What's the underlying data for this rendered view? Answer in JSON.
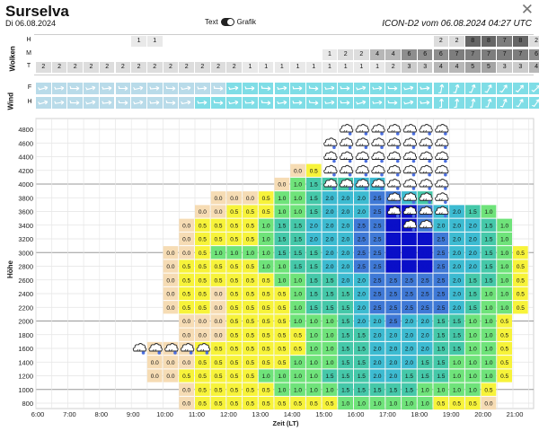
{
  "header": {
    "title": "Surselva",
    "date": "Di 06.08.2024",
    "toggle_text": "Text",
    "toggle_graph": "Grafik",
    "model_info": "ICON-D2 vom 06.08.2024 04:27 UTC",
    "close_glyph": "✕"
  },
  "clouds": {
    "label": "Wolken",
    "rows": [
      "H",
      "M",
      "T"
    ],
    "values": {
      "H": {
        "6": "1",
        "7": "1",
        "25": "2",
        "26": "2",
        "27": "8",
        "28": "8",
        "29": "7",
        "30": "8",
        "31": "2"
      },
      "M": {
        "18": "1",
        "19": "2",
        "20": "2",
        "21": "4",
        "22": "4",
        "23": "6",
        "24": "6",
        "25": "6",
        "26": "7",
        "27": "7",
        "28": "7",
        "29": "7",
        "30": "7",
        "31": "6"
      },
      "T": {
        "0": "2",
        "1": "2",
        "2": "2",
        "3": "2",
        "4": "2",
        "5": "2",
        "6": "2",
        "7": "2",
        "8": "2",
        "9": "2",
        "10": "2",
        "11": "2",
        "12": "2",
        "13": "1",
        "14": "1",
        "15": "1",
        "16": "1",
        "17": "1",
        "18": "1",
        "19": "1",
        "20": "1",
        "21": "1",
        "22": "2",
        "23": "3",
        "24": "3",
        "25": "4",
        "26": "4",
        "27": "5",
        "28": "5",
        "29": "3",
        "30": "3",
        "31": "4"
      }
    },
    "gray_levels": {
      "1": "#e9e9e9",
      "2": "#dddddd",
      "3": "#cccccc",
      "4": "#b7b7b7",
      "5": "#a5a5a5",
      "6": "#8e8e8e",
      "7": "#7d7d7d",
      "8": "#666666"
    }
  },
  "wind": {
    "label": "Wind",
    "rows": [
      "F",
      "H"
    ],
    "colors": {
      "light": "#b9dbe9",
      "cyan": "#7fdde6"
    }
  },
  "chart_data": {
    "type": "heatmap",
    "xlabel": "Zeit (LT)",
    "ylabel": "Höhe",
    "x_ticks": [
      "6:00",
      "7:00",
      "8:00",
      "9:00",
      "10:00",
      "11:00",
      "12:00",
      "13:00",
      "14:00",
      "15:00",
      "16:00",
      "17:00",
      "18:00",
      "19:00",
      "20:00",
      "21:00"
    ],
    "y_ticks": [
      "4800",
      "4600",
      "4400",
      "4200",
      "4000",
      "3800",
      "3600",
      "3400",
      "3200",
      "3000",
      "2800",
      "2600",
      "2400",
      "2200",
      "2000",
      "1800",
      "1600",
      "1400",
      "1200",
      "1000",
      "800"
    ],
    "y_range": [
      800,
      4800
    ],
    "x_range": [
      "6:00",
      "21:30"
    ],
    "thermal_values": {
      "2200": {
        "8": "0.0",
        "9": "0.5",
        "10": "0.5",
        "11": "0.0",
        "12": "0.5",
        "13": "0.5",
        "14": "0.5",
        "15": "0.5",
        "16": "1.0",
        "17": "1.5",
        "18": "1.5",
        "19": "1.5",
        "20": "2.0",
        "21": "2.5",
        "22": "2.5",
        "23": "2.5",
        "24": "2.5",
        "25": "2.5",
        "26": "2.0",
        "27": "1.5",
        "28": "1.0",
        "29": "1.0",
        "30": "0.5"
      },
      "2400": {
        "8": "0.0",
        "9": "0.5",
        "10": "0.5",
        "11": "0.0",
        "12": "0.5",
        "13": "0.5",
        "14": "0.5",
        "15": "0.5",
        "16": "1.0",
        "17": "1.5",
        "18": "1.5",
        "19": "1.5",
        "20": "2.0",
        "21": "2.5",
        "22": "2.5",
        "23": "2.5",
        "24": "2.5",
        "25": "2.5",
        "26": "2.0",
        "27": "1.5",
        "28": "1.0",
        "29": "1.0",
        "30": "0.5"
      },
      "2600": {
        "8": "0.0",
        "9": "0.5",
        "10": "0.5",
        "11": "0.5",
        "12": "0.5",
        "13": "0.5",
        "14": "0.5",
        "15": "1.0",
        "16": "1.0",
        "17": "1.5",
        "18": "1.5",
        "19": "2.0",
        "20": "2.0",
        "21": "2.5",
        "22": "2.5",
        "23": "2.5",
        "24": "2.5",
        "25": "2.5",
        "26": "2.0",
        "27": "1.5",
        "28": "1.5",
        "29": "1.0",
        "30": "0.5"
      },
      "2800": {
        "8": "0.0",
        "9": "0.5",
        "10": "0.5",
        "11": "0.5",
        "12": "0.5",
        "13": "0.5",
        "14": "1.0",
        "15": "1.0",
        "16": "1.5",
        "17": "1.5",
        "18": "2.0",
        "19": "2.0",
        "20": "2.5",
        "21": "2.5",
        "22": "3.0",
        "23": "3.0",
        "24": "3.0",
        "25": "2.5",
        "26": "2.0",
        "27": "2.0",
        "28": "1.5",
        "29": "1.0",
        "30": "0.5"
      },
      "3000": {
        "8": "0.0",
        "9": "0.0",
        "10": "0.5",
        "11": "1.0",
        "12": "1.0",
        "13": "1.0",
        "14": "1.0",
        "15": "1.5",
        "16": "1.5",
        "17": "1.5",
        "18": "2.0",
        "19": "2.0",
        "20": "2.5",
        "21": "2.5",
        "22": "3.0",
        "23": "3.0",
        "24": "3.0",
        "25": "2.5",
        "26": "2.0",
        "27": "2.0",
        "28": "1.5",
        "29": "1.0",
        "30": "0.5"
      },
      "3200": {
        "9": "0.0",
        "10": "0.5",
        "11": "0.5",
        "12": "0.5",
        "13": "0.5",
        "14": "1.0",
        "15": "1.5",
        "16": "1.5",
        "17": "2.0",
        "18": "2.0",
        "19": "2.0",
        "20": "2.5",
        "21": "2.5",
        "22": "3.0",
        "23": "3.0",
        "24": "3.0",
        "25": "2.5",
        "26": "2.0",
        "27": "2.0",
        "28": "1.5",
        "29": "1.0"
      },
      "3400": {
        "9": "0.0",
        "10": "0.5",
        "11": "0.5",
        "12": "0.5",
        "13": "0.5",
        "14": "1.0",
        "15": "1.5",
        "16": "1.5",
        "17": "2.0",
        "18": "2.0",
        "19": "2.0",
        "20": "2.5",
        "21": "2.5",
        "22": "3.0",
        "23": "3.0",
        "24": "2.5",
        "25": "2.0",
        "26": "2.0",
        "27": "2.0",
        "28": "1.5",
        "29": "1.0"
      },
      "3600": {
        "10": "0.0",
        "11": "0.0",
        "12": "0.5",
        "13": "0.5",
        "14": "0.5",
        "15": "1.0",
        "16": "1.0",
        "17": "1.5",
        "18": "2.0",
        "19": "2.0",
        "20": "2.0",
        "21": "2.5",
        "22": "3.0",
        "23": "3.0",
        "24": "2.5",
        "25": "2.0",
        "26": "2.0",
        "27": "1.5",
        "28": "1.0"
      },
      "3800": {
        "11": "0.0",
        "12": "0.0",
        "13": "0.0",
        "14": "0.5",
        "15": "1.0",
        "16": "1.0",
        "17": "1.5",
        "18": "2.0",
        "19": "2.0",
        "20": "2.0",
        "21": "2.5",
        "22": "2.5",
        "23": "2.0",
        "24": "1.5"
      },
      "4000": {
        "15": "0.0",
        "16": "1.0",
        "17": "1.5",
        "18": "1.5",
        "19": "1.5",
        "20": "2.0",
        "21": "2.0"
      },
      "4200": {
        "16": "0.0",
        "17": "0.5"
      },
      "2000": {
        "9": "0.0",
        "10": "0.0",
        "11": "0.0",
        "12": "0.5",
        "13": "0.5",
        "14": "0.5",
        "15": "0.5",
        "16": "1.0",
        "17": "1.0",
        "18": "1.0",
        "19": "1.5",
        "20": "2.0",
        "21": "2.0",
        "22": "2.5",
        "23": "2.0",
        "24": "2.0",
        "25": "1.5",
        "26": "1.5",
        "27": "1.0",
        "28": "1.0",
        "29": "0.5"
      },
      "1800": {
        "9": "0.0",
        "10": "0.0",
        "11": "0.0",
        "12": "0.5",
        "13": "0.5",
        "14": "0.5",
        "15": "0.5",
        "16": "0.5",
        "17": "1.0",
        "18": "1.0",
        "19": "1.5",
        "20": "1.5",
        "21": "2.0",
        "22": "2.0",
        "23": "2.0",
        "24": "2.0",
        "25": "1.5",
        "26": "1.5",
        "27": "1.0",
        "28": "1.0",
        "29": "0.5",
        "35": "0.0",
        "36": "0.0"
      },
      "1600": {
        "7": "0.0",
        "8": "0.0",
        "9": "0.0",
        "10": "0.5",
        "11": "0.5",
        "12": "0.5",
        "13": "0.5",
        "14": "0.5",
        "15": "0.5",
        "16": "0.5",
        "17": "1.0",
        "18": "1.0",
        "19": "1.5",
        "20": "1.5",
        "21": "2.0",
        "22": "2.0",
        "23": "2.0",
        "24": "2.0",
        "25": "1.5",
        "26": "1.5",
        "27": "1.0",
        "28": "1.0",
        "29": "0.5",
        "35": "0.0",
        "36": "0.0"
      },
      "1400": {
        "7": "0.0",
        "8": "0.0",
        "9": "0.0",
        "10": "0.5",
        "11": "0.5",
        "12": "0.5",
        "13": "0.5",
        "14": "0.5",
        "15": "0.5",
        "16": "1.0",
        "17": "1.0",
        "18": "1.0",
        "19": "1.5",
        "20": "1.5",
        "21": "2.0",
        "22": "2.0",
        "23": "2.0",
        "24": "1.5",
        "25": "1.5",
        "26": "1.0",
        "27": "1.0",
        "28": "1.0",
        "29": "0.5",
        "35": "0.0",
        "36": "0.0"
      },
      "1200": {
        "7": "0.0",
        "8": "0.0",
        "9": "0.5",
        "10": "0.5",
        "11": "0.5",
        "12": "0.5",
        "13": "0.5",
        "14": "1.0",
        "15": "1.0",
        "16": "1.0",
        "17": "1.0",
        "18": "1.5",
        "19": "1.5",
        "20": "1.5",
        "21": "2.0",
        "22": "2.0",
        "23": "1.5",
        "24": "1.5",
        "25": "1.5",
        "26": "1.0",
        "27": "1.0",
        "28": "1.0",
        "29": "0.5"
      },
      "1000": {
        "9": "0.0",
        "10": "0.5",
        "11": "0.5",
        "12": "0.5",
        "13": "0.5",
        "14": "0.5",
        "15": "1.0",
        "16": "1.0",
        "17": "1.0",
        "18": "1.0",
        "19": "1.5",
        "20": "1.5",
        "21": "1.5",
        "22": "1.5",
        "23": "1.5",
        "24": "1.0",
        "25": "1.0",
        "26": "1.0",
        "27": "1.0",
        "28": "0.5"
      },
      "800": {
        "9": "0.0",
        "10": "0.5",
        "11": "0.5",
        "12": "0.5",
        "13": "0.5",
        "14": "0.5",
        "15": "0.5",
        "16": "0.5",
        "17": "0.5",
        "18": "0.5",
        "19": "1.0",
        "20": "1.0",
        "21": "1.0",
        "22": "1.0",
        "23": "1.0",
        "24": "1.0",
        "25": "0.5",
        "26": "0.5",
        "27": "0.5",
        "28": "0.0"
      }
    },
    "extra_cells": [
      {
        "alt": "2600",
        "col": "33",
        "v": "0.0"
      },
      {
        "alt": "2600",
        "col": "34",
        "v": "0.0"
      },
      {
        "alt": "2400",
        "col": "33",
        "v": "0.0"
      },
      {
        "alt": "2400",
        "col": "34",
        "v": "0.0"
      },
      {
        "alt": "2200",
        "col": "35",
        "v": "0.0"
      },
      {
        "alt": "2200",
        "col": "36",
        "v": "0.0"
      }
    ],
    "colors": {
      "0.0": "#f6dcb4",
      "0.5": "#f7f33a",
      "1.0": "#6fe37a",
      "1.5": "#45c8a9",
      "2.0": "#3dbbd1",
      "2.5": "#3f79d6",
      "3.0": "#0a0fc8"
    },
    "cloud_symbols": {
      "4800": [
        19,
        20,
        21,
        22,
        23,
        24,
        25
      ],
      "4600": [
        18,
        19,
        20,
        21,
        22,
        23,
        24,
        25
      ],
      "4400": [
        18,
        19,
        20,
        21,
        22,
        23,
        24,
        25
      ],
      "4200": [
        18,
        19,
        20,
        21,
        22,
        23,
        24,
        25
      ],
      "4000": [
        18,
        19,
        20,
        21,
        22,
        23,
        24,
        25
      ],
      "3800": [
        22,
        23,
        24,
        25
      ],
      "3600": [
        22,
        23,
        24,
        25
      ],
      "3400": [
        23,
        24
      ],
      "1600": [
        6,
        7,
        8,
        9,
        10
      ],
      "2800": [
        33
      ],
      "2600": [
        33
      ],
      "2400": [
        33
      ]
    },
    "cloud_base_labels": [
      {
        "alt": "2800",
        "col": "35",
        "v": "2"
      },
      {
        "alt": "2800",
        "col": "36",
        "v": "2"
      },
      {
        "alt": "2600",
        "col": "35",
        "v": "2"
      },
      {
        "alt": "2600",
        "col": "36",
        "v": "2"
      },
      {
        "alt": "2400",
        "col": "35",
        "v": "2"
      },
      {
        "alt": "2400",
        "col": "36",
        "v": "2"
      }
    ]
  }
}
